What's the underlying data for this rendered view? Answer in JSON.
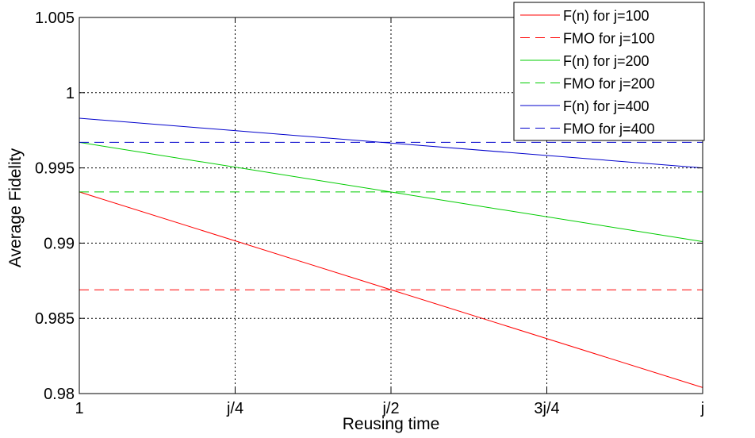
{
  "chart_data": {
    "type": "line",
    "xlabel": "Reusing time",
    "ylabel": "Average Fidelity",
    "x": [
      0,
      1
    ],
    "xlim": [
      0,
      1
    ],
    "ylim": [
      0.98,
      1.005
    ],
    "x_ticks": [
      {
        "value": 0,
        "label": "1"
      },
      {
        "value": 0.25,
        "label": "j/4"
      },
      {
        "value": 0.5,
        "label": "j/2"
      },
      {
        "value": 0.75,
        "label": "3j/4"
      },
      {
        "value": 1,
        "label": "j"
      }
    ],
    "y_ticks": [
      {
        "value": 0.98,
        "label": "0.98"
      },
      {
        "value": 0.985,
        "label": "0.985"
      },
      {
        "value": 0.99,
        "label": "0.99"
      },
      {
        "value": 0.995,
        "label": "0.995"
      },
      {
        "value": 1.0,
        "label": "1"
      },
      {
        "value": 1.005,
        "label": "1.005"
      }
    ],
    "grid": true,
    "legend_position": "top-right",
    "series": [
      {
        "name": "F(n) for j=100",
        "color": "#ff0000",
        "style": "solid",
        "values": [
          0.9934,
          0.9804
        ]
      },
      {
        "name": "FMO for j=100",
        "color": "#ff0000",
        "style": "dashed",
        "values": [
          0.9869,
          0.9869
        ]
      },
      {
        "name": "F(n) for j=200",
        "color": "#00cc00",
        "style": "solid",
        "values": [
          0.9967,
          0.9901
        ]
      },
      {
        "name": "FMO for j=200",
        "color": "#00cc00",
        "style": "dashed",
        "values": [
          0.9934,
          0.9934
        ]
      },
      {
        "name": "F(n) for j=400",
        "color": "#0000cc",
        "style": "solid",
        "values": [
          0.9983,
          0.995
        ]
      },
      {
        "name": "FMO for j=400",
        "color": "#0000cc",
        "style": "dashed",
        "values": [
          0.9967,
          0.9967
        ]
      }
    ]
  }
}
